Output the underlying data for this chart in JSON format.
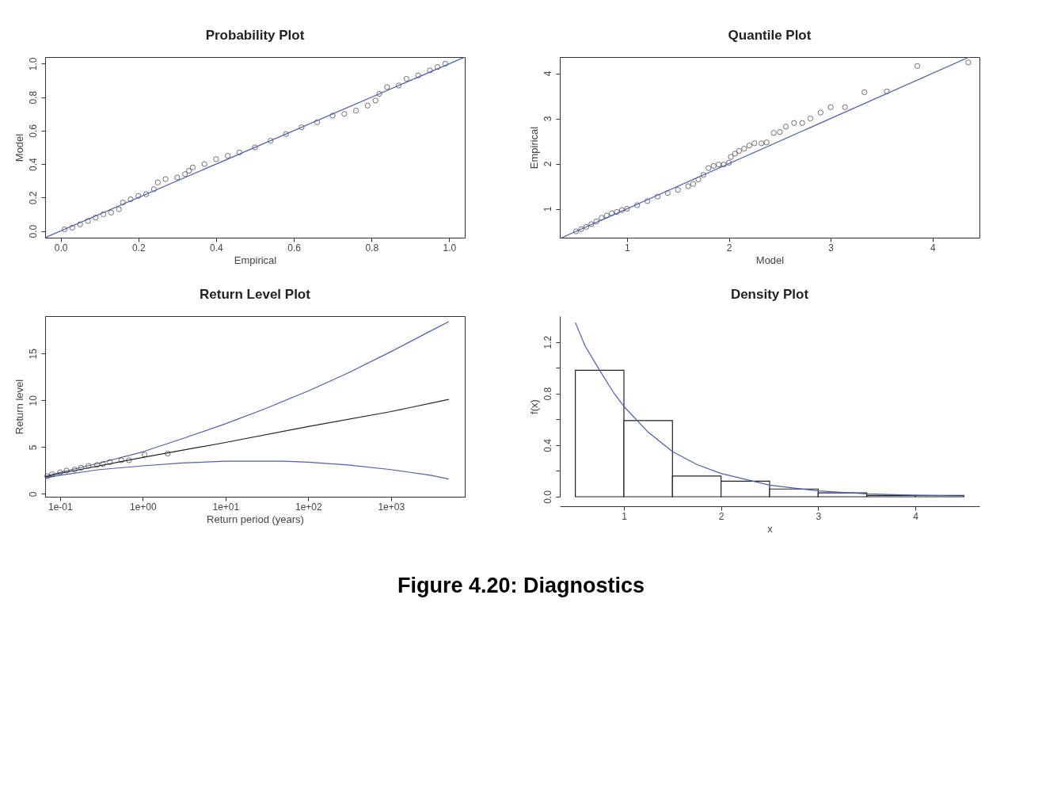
{
  "chart_data": [
    {
      "type": "scatter",
      "title": "Probability Plot",
      "xlabel": "Empirical",
      "ylabel": "Model",
      "xlim": [
        -0.04,
        1.04
      ],
      "ylim": [
        -0.04,
        1.04
      ],
      "xticks": [
        {
          "value": 0,
          "label": "0.0"
        },
        0.2,
        0.4,
        0.6,
        0.8,
        {
          "value": 1,
          "label": "1.0"
        }
      ],
      "yticks": [
        {
          "value": 0,
          "label": "0.0"
        },
        0.2,
        0.4,
        0.6,
        0.8,
        {
          "value": 1,
          "label": "1.0"
        }
      ],
      "grid": false,
      "series": [
        {
          "type": "scatter",
          "marker": "circle",
          "color": "#333333",
          "x": [
            0.01,
            0.03,
            0.05,
            0.07,
            0.09,
            0.11,
            0.13,
            0.15,
            0.16,
            0.18,
            0.2,
            0.22,
            0.24,
            0.25,
            0.27,
            0.3,
            0.32,
            0.33,
            0.34,
            0.37,
            0.4,
            0.43,
            0.46,
            0.5,
            0.54,
            0.58,
            0.62,
            0.66,
            0.7,
            0.73,
            0.76,
            0.79,
            0.81,
            0.82,
            0.84,
            0.87,
            0.89,
            0.92,
            0.95,
            0.97,
            0.99
          ],
          "values": [
            0.01,
            0.02,
            0.04,
            0.06,
            0.08,
            0.1,
            0.11,
            0.13,
            0.17,
            0.19,
            0.21,
            0.22,
            0.25,
            0.29,
            0.31,
            0.32,
            0.34,
            0.36,
            0.38,
            0.4,
            0.43,
            0.45,
            0.47,
            0.5,
            0.54,
            0.58,
            0.62,
            0.65,
            0.69,
            0.7,
            0.72,
            0.75,
            0.78,
            0.82,
            0.86,
            0.87,
            0.91,
            0.93,
            0.96,
            0.98,
            1.0
          ]
        },
        {
          "type": "line",
          "color": "#4f5fae",
          "x": [
            -0.04,
            1.04
          ],
          "values": [
            -0.04,
            1.04
          ]
        }
      ]
    },
    {
      "type": "scatter",
      "title": "Quantile Plot",
      "xlabel": "Model",
      "ylabel": "Empirical",
      "xlim": [
        0.34,
        4.46
      ],
      "ylim": [
        0.36,
        4.36
      ],
      "xticks": [
        1,
        2,
        3,
        4
      ],
      "yticks": [
        1,
        2,
        3,
        4
      ],
      "grid": false,
      "series": [
        {
          "type": "scatter",
          "marker": "circle",
          "color": "#333333",
          "x": [
            0.5,
            0.55,
            0.6,
            0.65,
            0.7,
            0.75,
            0.8,
            0.85,
            0.9,
            0.95,
            1.0,
            1.1,
            1.2,
            1.3,
            1.4,
            1.5,
            1.6,
            1.65,
            1.7,
            1.75,
            1.8,
            1.85,
            1.9,
            1.95,
            2.0,
            2.02,
            2.06,
            2.1,
            2.15,
            2.2,
            2.25,
            2.32,
            2.37,
            2.44,
            2.5,
            2.56,
            2.64,
            2.72,
            2.8,
            2.9,
            3.0,
            3.14,
            3.33,
            3.55,
            3.85,
            4.35
          ],
          "values": [
            0.5,
            0.55,
            0.6,
            0.66,
            0.72,
            0.8,
            0.85,
            0.9,
            0.93,
            0.97,
            1.0,
            1.08,
            1.17,
            1.27,
            1.35,
            1.42,
            1.5,
            1.55,
            1.65,
            1.75,
            1.9,
            1.95,
            1.98,
            1.98,
            2.02,
            2.15,
            2.22,
            2.28,
            2.33,
            2.4,
            2.45,
            2.45,
            2.47,
            2.68,
            2.7,
            2.82,
            2.9,
            2.9,
            3.0,
            3.13,
            3.25,
            3.25,
            3.58,
            3.6,
            4.16,
            4.24
          ]
        },
        {
          "type": "line",
          "color": "#4f5fae",
          "x": [
            0.36,
            4.36
          ],
          "values": [
            0.36,
            4.36
          ]
        }
      ]
    },
    {
      "type": "line",
      "title": "Return Level Plot",
      "xlabel": "Return period (years)",
      "ylabel": "Return level",
      "log": "x",
      "xlim": [
        0.066,
        7800
      ],
      "ylim": [
        -0.3,
        19
      ],
      "xticks": [
        {
          "value": 0.1,
          "label": "1e-01"
        },
        {
          "value": 1,
          "label": "1e+00"
        },
        {
          "value": 10,
          "label": "1e+01"
        },
        {
          "value": 100,
          "label": "1e+02"
        },
        {
          "value": 1000,
          "label": "1e+03"
        }
      ],
      "yticks": [
        0,
        5,
        10,
        15
      ],
      "grid": false,
      "series": [
        {
          "type": "line",
          "color": "#4f5fae",
          "x": [
            0.066,
            0.1,
            0.3,
            1,
            3,
            10,
            30,
            100,
            300,
            1000,
            3000,
            5000
          ],
          "values": [
            1.9,
            2.3,
            3.3,
            4.5,
            5.9,
            7.5,
            9.1,
            11.0,
            12.9,
            15.2,
            17.4,
            18.4
          ]
        },
        {
          "type": "line",
          "color": "#222222",
          "x": [
            0.066,
            0.1,
            1,
            10,
            100,
            1000,
            5000
          ],
          "values": [
            1.8,
            2.2,
            3.9,
            5.5,
            7.2,
            8.8,
            10.1
          ]
        },
        {
          "type": "line",
          "color": "#4f5fae",
          "x": [
            0.066,
            0.1,
            0.3,
            1,
            3,
            10,
            50,
            100,
            300,
            1000,
            3000,
            5000
          ],
          "values": [
            1.7,
            2.0,
            2.6,
            3.0,
            3.3,
            3.5,
            3.5,
            3.4,
            3.1,
            2.6,
            2.0,
            1.6
          ]
        },
        {
          "type": "scatter",
          "color": "#333333",
          "marker": "circle",
          "x": [
            0.07,
            0.08,
            0.1,
            0.12,
            0.15,
            0.18,
            0.22,
            0.28,
            0.33,
            0.4,
            0.55,
            0.68,
            1.05,
            2.0
          ],
          "values": [
            1.9,
            2.1,
            2.3,
            2.5,
            2.6,
            2.8,
            3.0,
            3.1,
            3.2,
            3.4,
            3.6,
            3.6,
            4.2,
            4.3
          ]
        }
      ]
    },
    {
      "type": "histogram",
      "title": "Density Plot",
      "xlabel": "x",
      "ylabel": "f(x)",
      "xlim": [
        0.34,
        4.66
      ],
      "ylim": [
        0,
        1.4
      ],
      "xticks": [
        1,
        2,
        3,
        4
      ],
      "yticks": [
        {
          "value": 0,
          "label": "0.0"
        },
        {
          "value": 0.2,
          "label": null
        },
        0.4,
        {
          "value": 0.6,
          "label": null
        },
        0.8,
        {
          "value": 1.0,
          "label": null
        },
        1.2
      ],
      "grid": false,
      "color": "#222222",
      "bins": [
        0.5,
        1.0,
        1.5,
        2.0,
        2.5,
        3.0,
        3.5,
        4.0,
        4.5
      ],
      "values": [
        0.98,
        0.59,
        0.16,
        0.12,
        0.06,
        0.03,
        0.01,
        0.01
      ],
      "annotations": [
        "Figure 4.20: Diagnostics"
      ],
      "series": [
        {
          "type": "line",
          "color": "#4f5fae",
          "x": [
            0.5,
            0.6,
            0.75,
            0.9,
            1.0,
            1.25,
            1.5,
            1.75,
            2.0,
            2.5,
            3.0,
            3.5,
            4.0,
            4.5
          ],
          "values": [
            1.35,
            1.17,
            0.98,
            0.8,
            0.7,
            0.5,
            0.35,
            0.25,
            0.18,
            0.09,
            0.045,
            0.022,
            0.011,
            0.006
          ]
        }
      ]
    }
  ]
}
